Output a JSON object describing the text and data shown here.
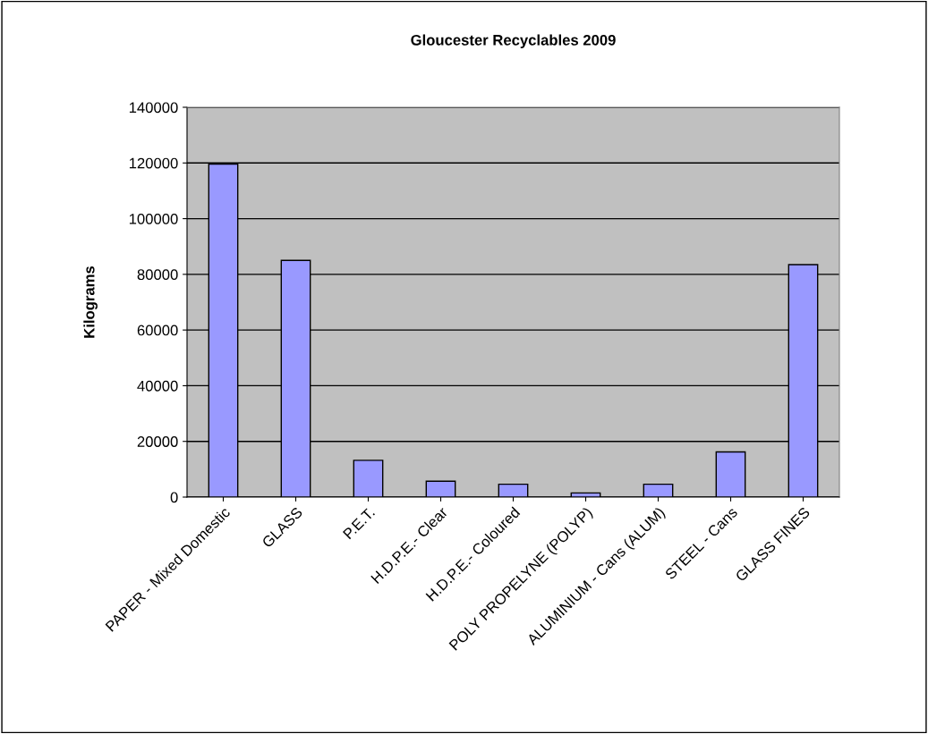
{
  "chart_data": {
    "type": "bar",
    "title": "Gloucester Recyclables 2009",
    "ylabel": "Kilograms",
    "categories": [
      "PAPER - Mixed Domestic",
      "GLASS",
      "P.E.T.",
      "H.D.P.E.- Clear",
      "H.D.P.E.- Coloured",
      "POLY PROPELYNE (POLYP)",
      "ALUMINIUM - Cans (ALUM)",
      "STEEL - Cans",
      "GLASS FINES"
    ],
    "values": [
      119600,
      85000,
      13200,
      5700,
      4600,
      1500,
      4600,
      16200,
      83500
    ],
    "color": "#9999ff",
    "ylim": [
      0,
      140000
    ],
    "yticks": [
      0,
      20000,
      40000,
      60000,
      80000,
      100000,
      120000,
      140000
    ],
    "grid": "y"
  }
}
